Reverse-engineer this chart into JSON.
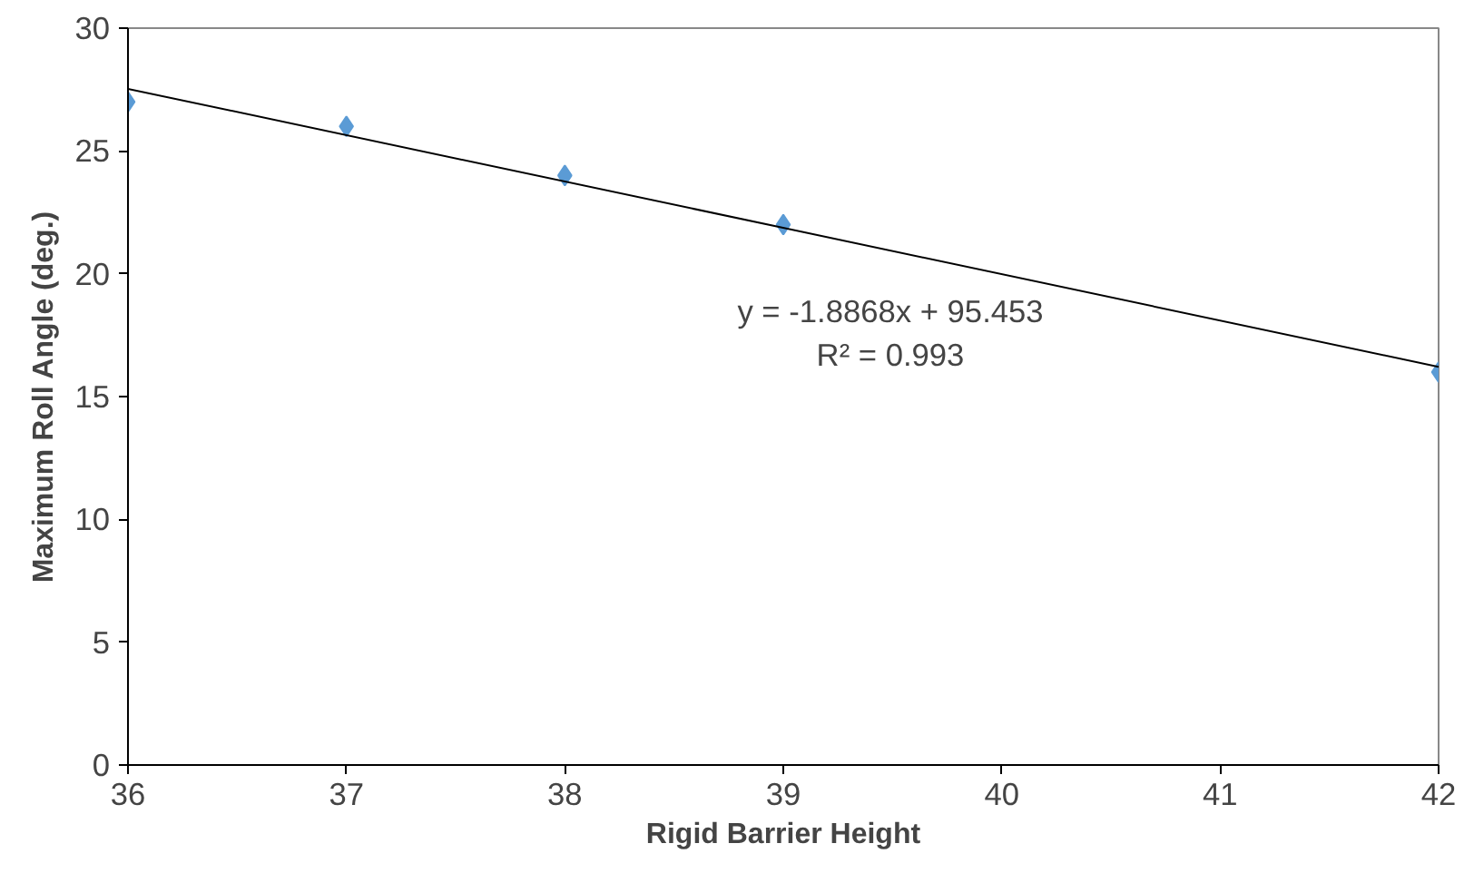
{
  "chart_data": {
    "type": "scatter",
    "xlabel": "Rigid Barrier Height",
    "ylabel": "Maximum Roll Angle (deg.)",
    "xlim": [
      36,
      42
    ],
    "ylim": [
      0,
      30
    ],
    "xticks": [
      36,
      37,
      38,
      39,
      40,
      41,
      42
    ],
    "yticks": [
      0,
      5,
      10,
      15,
      20,
      25,
      30
    ],
    "grid": false,
    "series": [
      {
        "marker": "diamond",
        "color": "#5b9bd5",
        "x": [
          36,
          37,
          38,
          39,
          42
        ],
        "values": [
          27,
          26,
          24,
          22,
          16
        ]
      },
      {
        "type": "line",
        "color": "#000000",
        "x": [
          36,
          42
        ],
        "values": [
          27.53,
          16.21
        ]
      }
    ],
    "annotations": [
      "y = -1.8868x + 95.453",
      "R² = 0.993"
    ]
  }
}
